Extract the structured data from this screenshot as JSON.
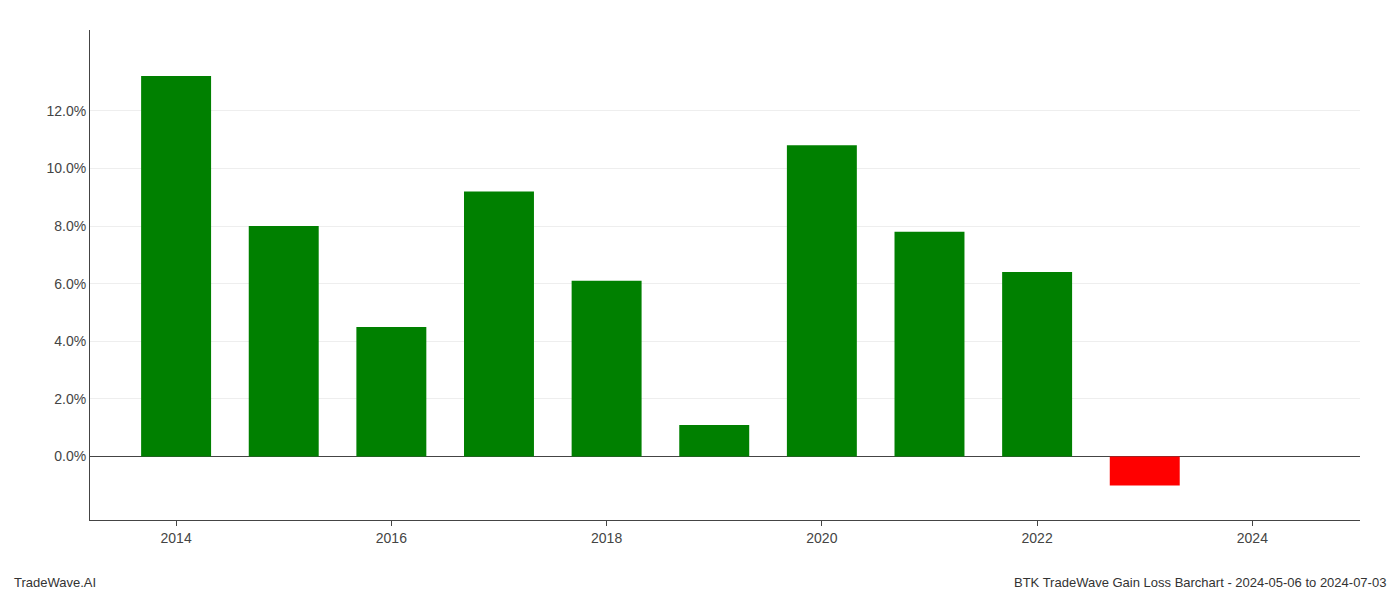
{
  "chart_data": {
    "type": "bar",
    "title": "BTK TradeWave Gain Loss Barchart - 2024-05-06 to 2024-07-03",
    "annotations": [
      {
        "text": "TradeWave.AI"
      }
    ],
    "x": [
      2014,
      2015,
      2016,
      2017,
      2018,
      2019,
      2020,
      2021,
      2022,
      2023
    ],
    "values": [
      0.132,
      0.08,
      0.045,
      0.092,
      0.061,
      0.011,
      0.108,
      0.078,
      0.064,
      -0.01
    ],
    "colors": [
      "#008000",
      "#008000",
      "#008000",
      "#008000",
      "#008000",
      "#008000",
      "#008000",
      "#008000",
      "#008000",
      "#ff0000"
    ],
    "xlim": [
      2013.2,
      2025.0
    ],
    "xticks": [
      2014,
      2016,
      2018,
      2020,
      2022,
      2024
    ],
    "ylim": [
      -0.022,
      0.148
    ],
    "yticks": [
      {
        "value": 0.0,
        "label": "0.0%"
      },
      {
        "value": 0.02,
        "label": "2.0%"
      },
      {
        "value": 0.04,
        "label": "4.0%"
      },
      {
        "value": 0.06,
        "label": "6.0%"
      },
      {
        "value": 0.08,
        "label": "8.0%"
      },
      {
        "value": 0.1,
        "label": "10.0%"
      },
      {
        "value": 0.12,
        "label": "12.0%"
      }
    ],
    "grid": true
  }
}
